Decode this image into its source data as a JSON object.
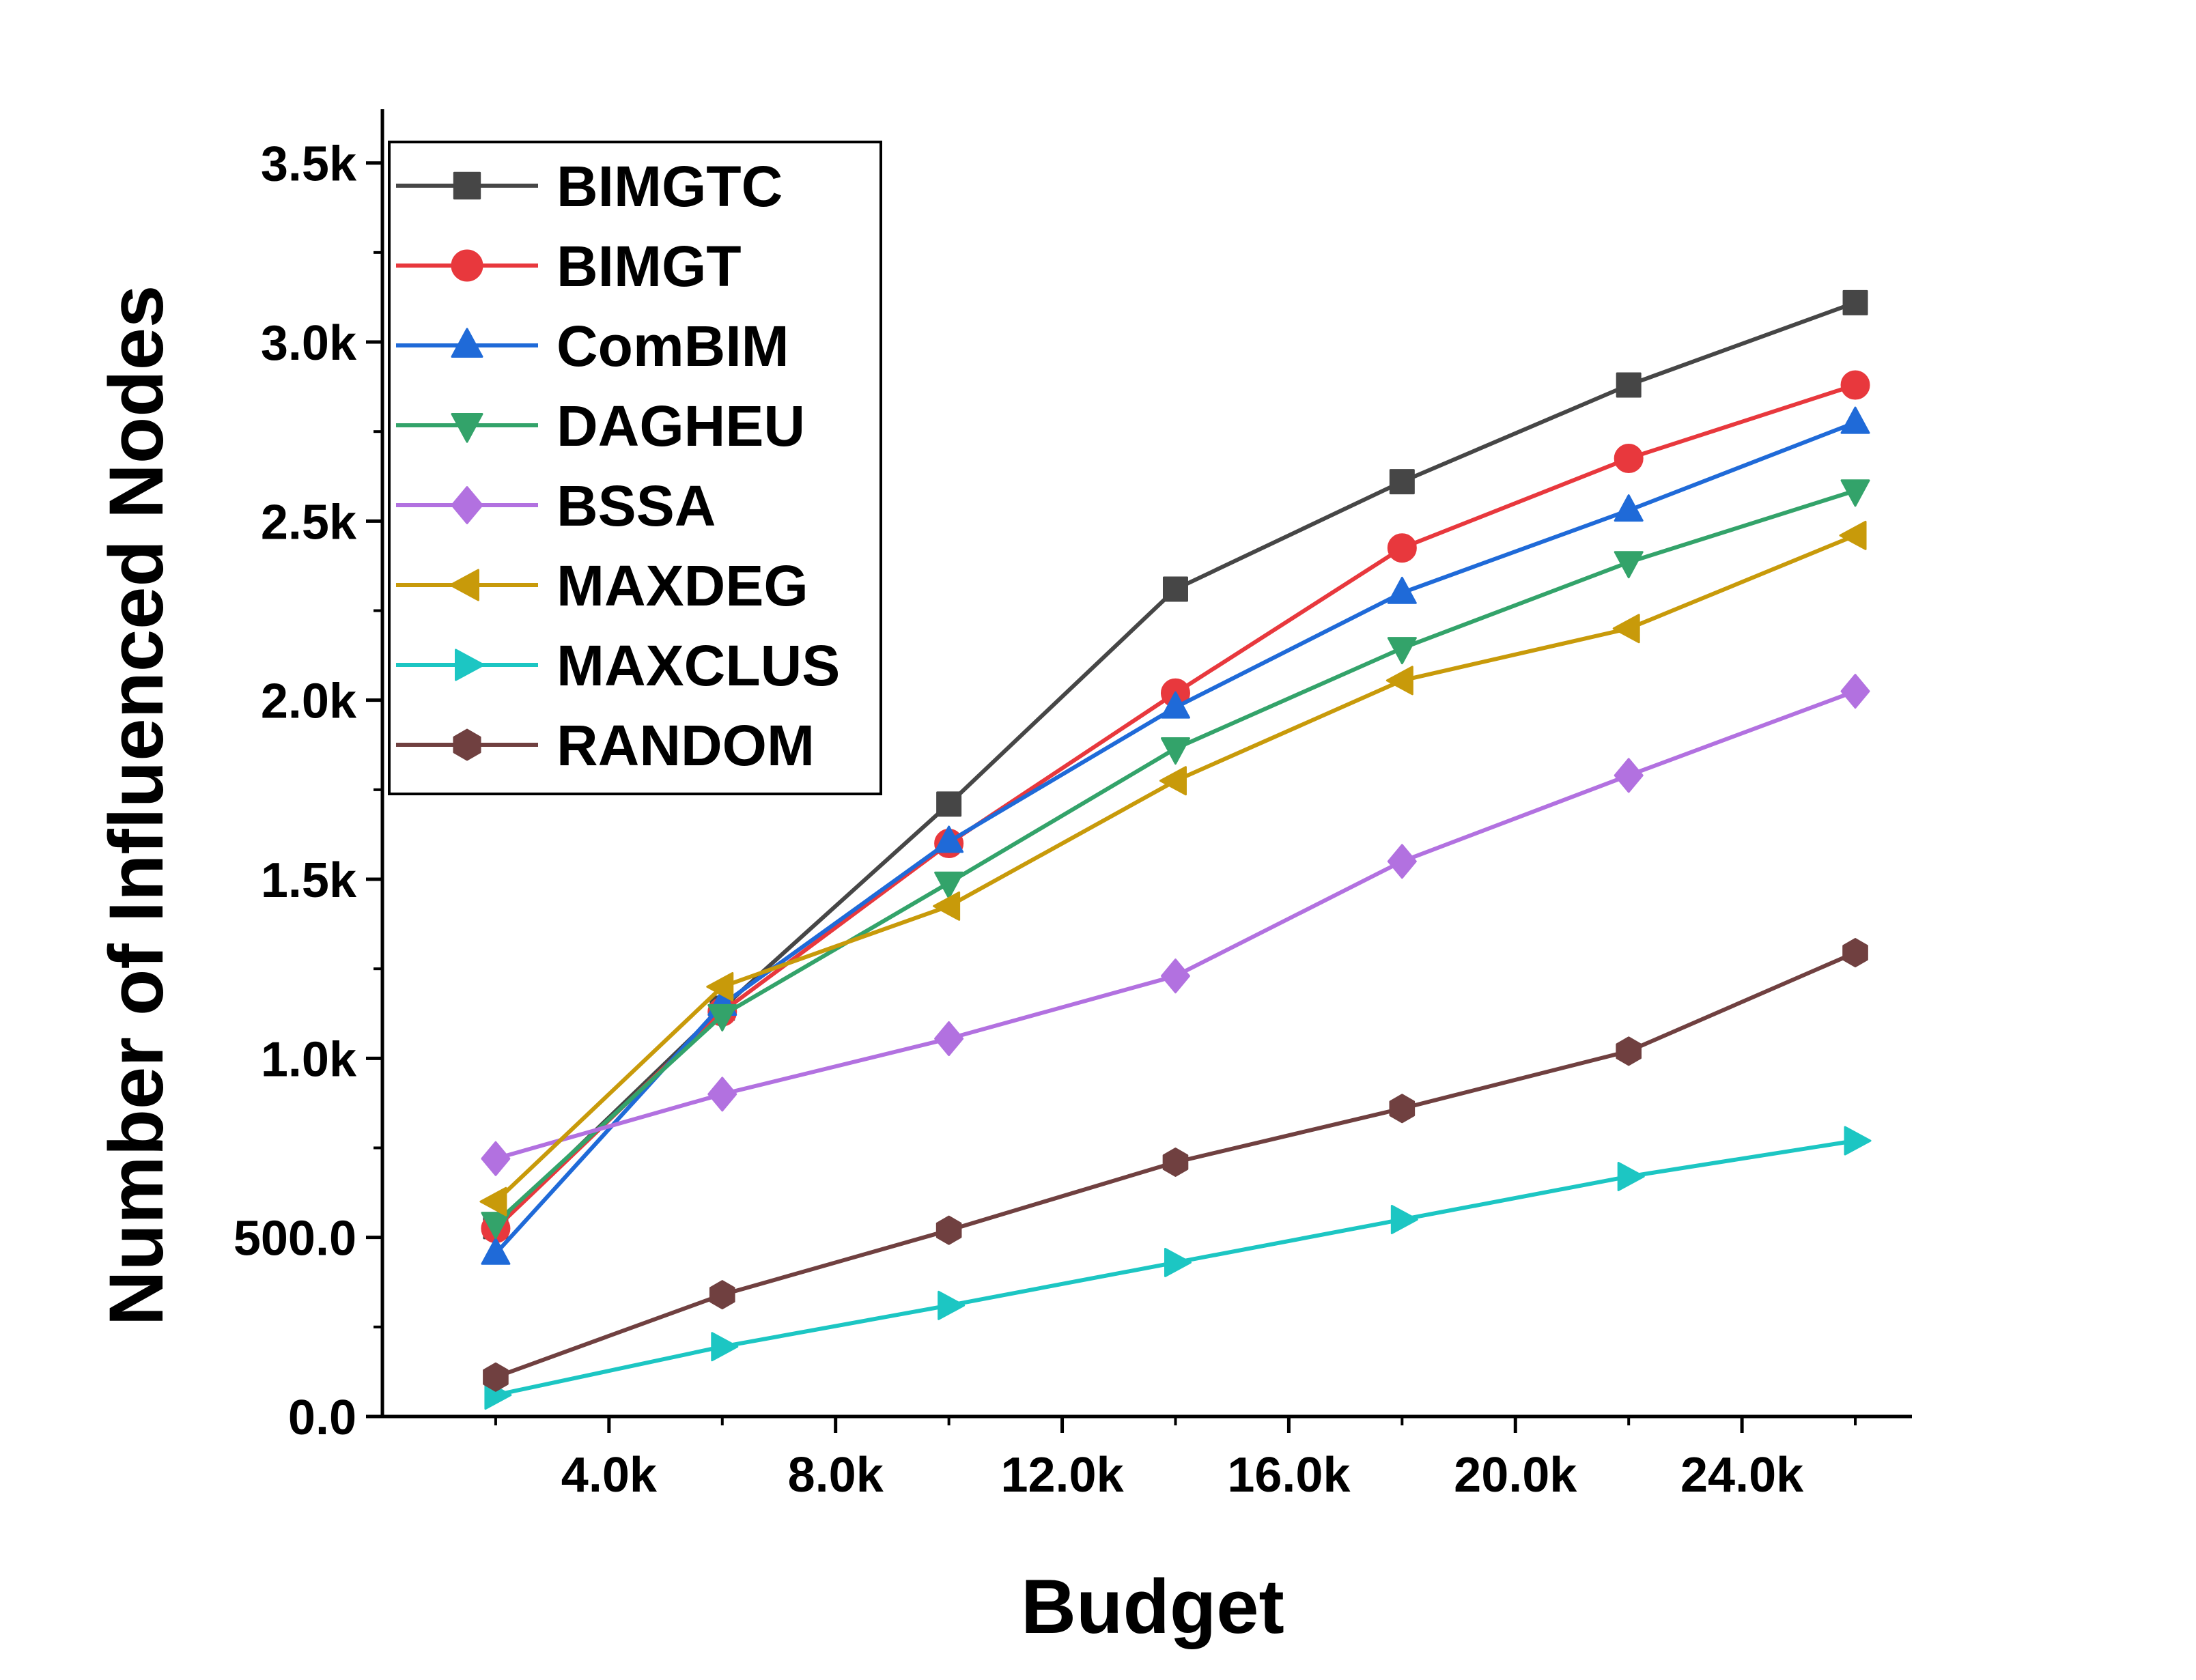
{
  "chart_data": {
    "type": "line",
    "title": "",
    "xlabel": "Budget",
    "ylabel": "Number of Influenced Nodes",
    "x": [
      2000,
      6000,
      10000,
      14000,
      18000,
      22000,
      26000
    ],
    "xlim": [
      0,
      27000
    ],
    "ylim": [
      0,
      3650
    ],
    "xticks": [
      4000,
      8000,
      12000,
      16000,
      20000,
      24000
    ],
    "xtick_labels": [
      "4.0k",
      "8.0k",
      "12.0k",
      "16.0k",
      "20.0k",
      "24.0k"
    ],
    "yticks": [
      0,
      500,
      1000,
      1500,
      2000,
      2500,
      3000,
      3500
    ],
    "ytick_labels": [
      "0.0",
      "500.0",
      "1.0k",
      "1.5k",
      "2.0k",
      "2.5k",
      "3.0k",
      "3.5k"
    ],
    "grid": false,
    "legend_position": "top-left",
    "series": [
      {
        "name": "BIMGTC",
        "color": "#464646",
        "marker": "square",
        "values": [
          530,
          1140,
          1710,
          2310,
          2610,
          2880,
          3110
        ]
      },
      {
        "name": "BIMGT",
        "color": "#e8383d",
        "marker": "circle",
        "values": [
          525,
          1130,
          1600,
          2020,
          2425,
          2675,
          2880
        ]
      },
      {
        "name": "ComBIM",
        "color": "#1f6ad8",
        "marker": "triangle-up",
        "values": [
          455,
          1150,
          1605,
          1980,
          2300,
          2530,
          2775
        ]
      },
      {
        "name": "DAGHEU",
        "color": "#33a36a",
        "marker": "triangle-down",
        "values": [
          540,
          1120,
          1490,
          1865,
          2145,
          2385,
          2585
        ]
      },
      {
        "name": "BSSA",
        "color": "#b271e0",
        "marker": "diamond",
        "values": [
          720,
          900,
          1055,
          1230,
          1550,
          1790,
          2025
        ]
      },
      {
        "name": "MAXDEG",
        "color": "#c89a0a",
        "marker": "triangle-left",
        "values": [
          600,
          1200,
          1425,
          1775,
          2055,
          2200,
          2460
        ]
      },
      {
        "name": "MAXCLUS",
        "color": "#1cc6c3",
        "marker": "triangle-right",
        "values": [
          60,
          195,
          310,
          430,
          550,
          670,
          770
        ]
      },
      {
        "name": "RANDOM",
        "color": "#704040",
        "marker": "hexagon",
        "values": [
          110,
          340,
          520,
          710,
          860,
          1020,
          1295
        ]
      }
    ]
  }
}
